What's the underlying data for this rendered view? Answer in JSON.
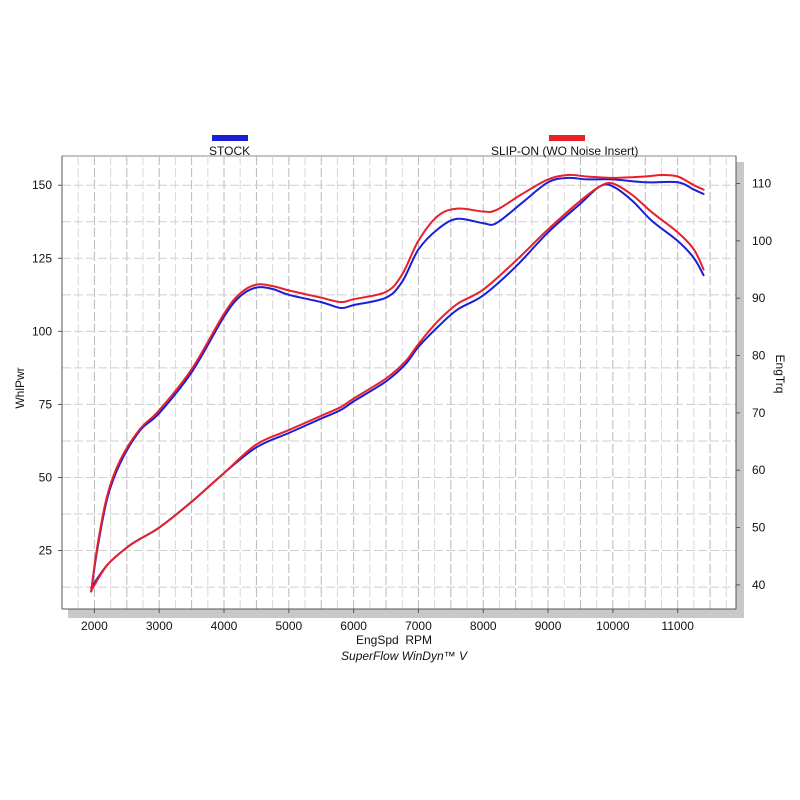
{
  "chart_data": {
    "type": "line",
    "xlabel": "EngSpd  RPM",
    "ylabel_left": "WhlPwr",
    "ylabel_right": "EngTrq",
    "footer": "SuperFlow WinDyn™ V",
    "xlim": [
      1500,
      11900
    ],
    "ylim_left": [
      5,
      160
    ],
    "ylim_right": [
      35.8,
      114.8
    ],
    "x_ticks": [
      2000,
      3000,
      4000,
      5000,
      6000,
      7000,
      8000,
      9000,
      10000,
      11000
    ],
    "y_left_ticks": [
      25,
      50,
      75,
      100,
      125,
      150
    ],
    "y_right_ticks": [
      40,
      50,
      60,
      70,
      80,
      90,
      100,
      110
    ],
    "grid": true,
    "legend": [
      {
        "name": "STOCK",
        "color": "#1a1fd6"
      },
      {
        "name": "SLIP-ON (WO Noise Insert)",
        "color": "#e8202a"
      }
    ],
    "series": [
      {
        "name": "STOCK",
        "measure": "WhlPwr",
        "axis": "left",
        "color": "#1a1fd6",
        "points": [
          [
            1950,
            11
          ],
          [
            2050,
            26
          ],
          [
            2200,
            43
          ],
          [
            2400,
            55
          ],
          [
            2700,
            66
          ],
          [
            3000,
            72
          ],
          [
            3500,
            86
          ],
          [
            4000,
            105
          ],
          [
            4250,
            112
          ],
          [
            4500,
            115
          ],
          [
            4750,
            114.5
          ],
          [
            5000,
            112.5
          ],
          [
            5500,
            110
          ],
          [
            5800,
            108
          ],
          [
            6000,
            109
          ],
          [
            6500,
            111.5
          ],
          [
            6750,
            117
          ],
          [
            7000,
            128
          ],
          [
            7300,
            135
          ],
          [
            7600,
            138.5
          ],
          [
            8000,
            137
          ],
          [
            8200,
            137
          ],
          [
            8600,
            144
          ],
          [
            9000,
            151
          ],
          [
            9300,
            152.5
          ],
          [
            9600,
            152
          ],
          [
            10000,
            152
          ],
          [
            10500,
            151
          ],
          [
            11000,
            151
          ],
          [
            11250,
            148.5
          ],
          [
            11400,
            147
          ]
        ]
      },
      {
        "name": "SLIP-ON (WO Noise Insert)",
        "measure": "WhlPwr",
        "axis": "left",
        "color": "#e8202a",
        "points": [
          [
            1950,
            11
          ],
          [
            2050,
            27
          ],
          [
            2200,
            44
          ],
          [
            2400,
            56
          ],
          [
            2700,
            66.5
          ],
          [
            3000,
            73
          ],
          [
            3500,
            87
          ],
          [
            4000,
            106
          ],
          [
            4250,
            113
          ],
          [
            4500,
            116
          ],
          [
            4750,
            115.5
          ],
          [
            5000,
            114
          ],
          [
            5500,
            111.5
          ],
          [
            5800,
            110
          ],
          [
            6000,
            111
          ],
          [
            6500,
            113.5
          ],
          [
            6750,
            119.5
          ],
          [
            7000,
            131
          ],
          [
            7300,
            139.5
          ],
          [
            7600,
            142
          ],
          [
            8000,
            141
          ],
          [
            8200,
            141.5
          ],
          [
            8600,
            147
          ],
          [
            9000,
            152
          ],
          [
            9300,
            153.5
          ],
          [
            9600,
            153
          ],
          [
            10000,
            152.5
          ],
          [
            10500,
            153
          ],
          [
            10750,
            153.5
          ],
          [
            11000,
            153
          ],
          [
            11250,
            150
          ],
          [
            11400,
            148.5
          ]
        ]
      },
      {
        "name": "STOCK",
        "measure": "EngTrq",
        "axis": "right",
        "color": "#1a1fd6",
        "points": [
          [
            1950,
            39.5
          ],
          [
            2200,
            43.5
          ],
          [
            2500,
            46.5
          ],
          [
            2700,
            48
          ],
          [
            3000,
            50
          ],
          [
            3500,
            54.5
          ],
          [
            4000,
            59.5
          ],
          [
            4500,
            64
          ],
          [
            5000,
            66.5
          ],
          [
            5500,
            69
          ],
          [
            5800,
            70.5
          ],
          [
            6000,
            72
          ],
          [
            6500,
            75.5
          ],
          [
            6800,
            78.5
          ],
          [
            7000,
            81.5
          ],
          [
            7300,
            85
          ],
          [
            7600,
            88
          ],
          [
            8000,
            90.5
          ],
          [
            8500,
            95.5
          ],
          [
            9000,
            101.5
          ],
          [
            9500,
            106.5
          ],
          [
            9800,
            109.5
          ],
          [
            10000,
            109.5
          ],
          [
            10300,
            107
          ],
          [
            10600,
            103.5
          ],
          [
            11000,
            100
          ],
          [
            11250,
            97
          ],
          [
            11400,
            94
          ]
        ]
      },
      {
        "name": "SLIP-ON (WO Noise Insert)",
        "measure": "EngTrq",
        "axis": "right",
        "color": "#e8202a",
        "points": [
          [
            1950,
            39
          ],
          [
            2200,
            43.5
          ],
          [
            2500,
            46.5
          ],
          [
            2700,
            48
          ],
          [
            3000,
            50
          ],
          [
            3500,
            54.5
          ],
          [
            4000,
            59.5
          ],
          [
            4500,
            64.5
          ],
          [
            5000,
            67
          ],
          [
            5500,
            69.5
          ],
          [
            5800,
            71
          ],
          [
            6000,
            72.5
          ],
          [
            6500,
            76
          ],
          [
            6800,
            79
          ],
          [
            7000,
            82
          ],
          [
            7300,
            86
          ],
          [
            7600,
            89
          ],
          [
            8000,
            91.5
          ],
          [
            8500,
            96.5
          ],
          [
            9000,
            102
          ],
          [
            9500,
            107
          ],
          [
            9800,
            109.5
          ],
          [
            10000,
            110
          ],
          [
            10300,
            108
          ],
          [
            10600,
            105
          ],
          [
            11000,
            101.5
          ],
          [
            11250,
            98.5
          ],
          [
            11400,
            95
          ]
        ]
      }
    ]
  }
}
